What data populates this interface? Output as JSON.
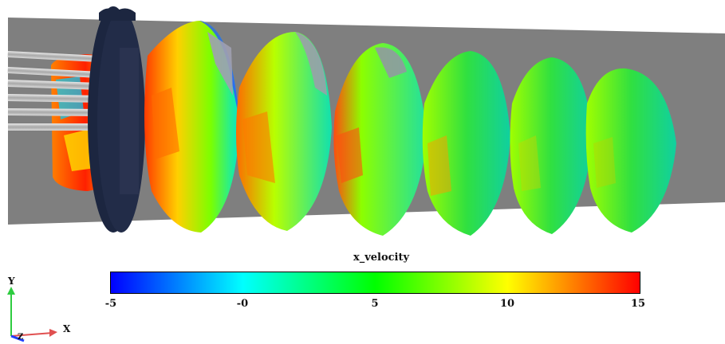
{
  "colorbar": {
    "title": "x_velocity",
    "ticks": [
      "-5",
      "-0",
      "5",
      "10",
      "15"
    ],
    "range": [
      -5,
      15
    ],
    "colors": [
      "#0000ff",
      "#00ffff",
      "#00ff00",
      "#ffff00",
      "#ff0000"
    ]
  },
  "axes_triad": {
    "y_label": "Y",
    "x_label": "X",
    "z_label": "Z",
    "y_color": "#2ecc40",
    "x_color": "#e05050",
    "z_color": "#2040ff"
  },
  "scene": {
    "background_plane_color": "#7f7f7f",
    "ring_color": "#1c2640",
    "rod_color": "#c8c8c8"
  }
}
